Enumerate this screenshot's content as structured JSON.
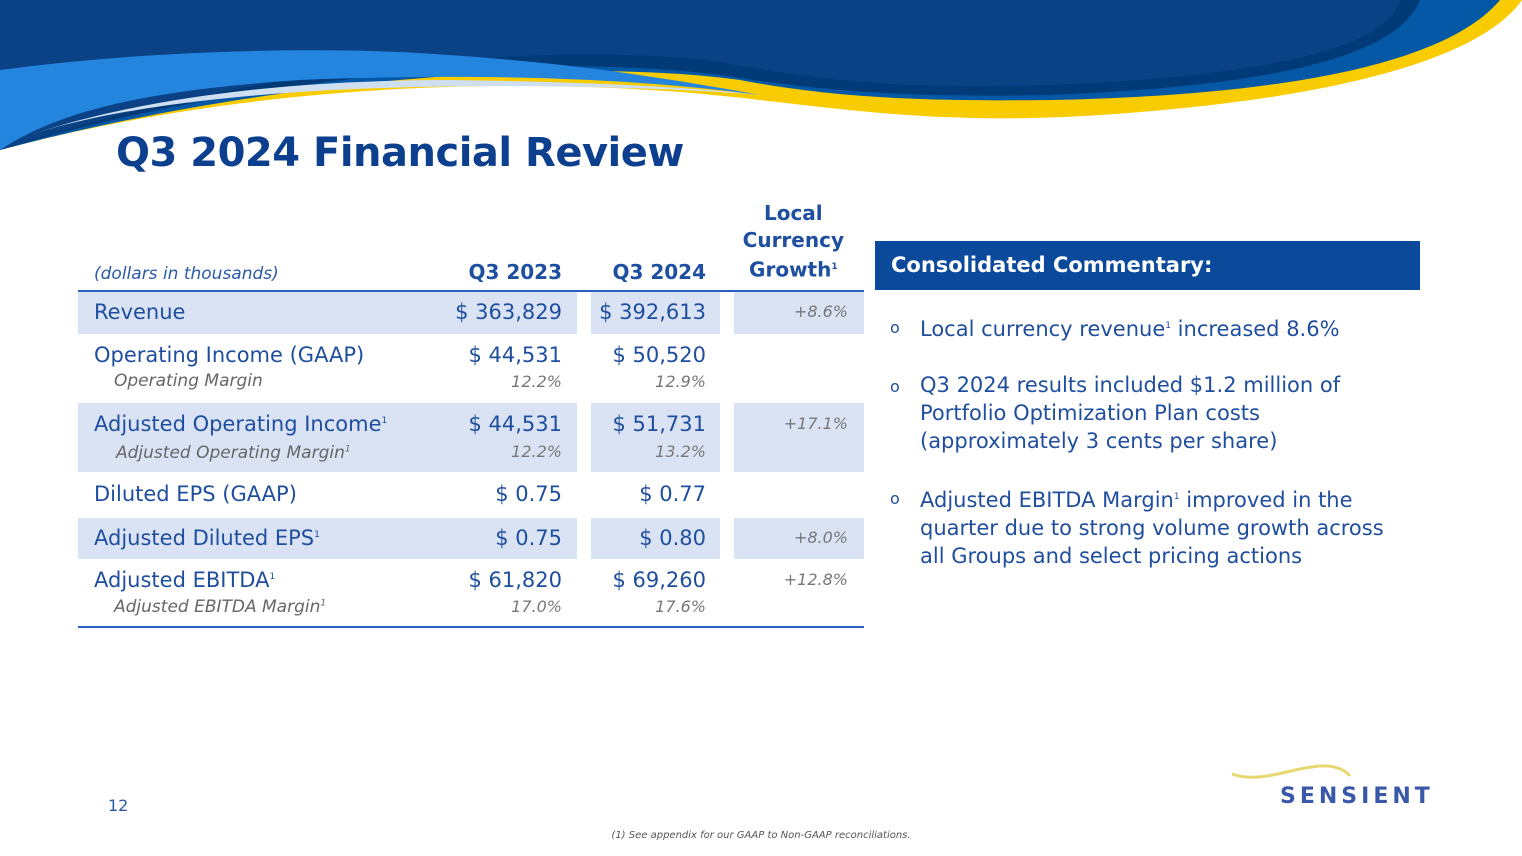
{
  "title": "Q3 2024 Financial Review",
  "table": {
    "units": "(dollars in thousands)",
    "headers": [
      "Q3 2023",
      "Q3 2024",
      "Local",
      "Currency",
      "Growth"
    ],
    "rows": [
      {
        "label": "Revenue",
        "v1": "$ 363,829",
        "v2": "$ 392,613",
        "growth": "+8.6%"
      },
      {
        "label": "Operating Income (GAAP)",
        "v1": "$ 44,531",
        "v2": "$ 50,520",
        "sub": "Operating Margin",
        "s1": "12.2%",
        "s2": "12.9%"
      },
      {
        "label": "Adjusted Operating Income",
        "v1": "$ 44,531",
        "v2": "$ 51,731",
        "growth": "+17.1%",
        "sub": "Adjusted Operating Margin",
        "s1": "12.2%",
        "s2": "13.2%"
      },
      {
        "label": "Diluted EPS (GAAP)",
        "v1": "$ 0.75",
        "v2": "$ 0.77"
      },
      {
        "label": "Adjusted Diluted EPS",
        "v1": "$ 0.75",
        "v2": "$ 0.80",
        "growth": "+8.0%"
      },
      {
        "label": "Adjusted EBITDA",
        "v1": "$ 61,820",
        "v2": "$ 69,260",
        "growth": "+12.8%",
        "sub": "Adjusted EBITDA Margin",
        "s1": "17.0%",
        "s2": "17.6%"
      }
    ]
  },
  "commentary": {
    "heading": "Consolidated Commentary:",
    "bullets": [
      {
        "a": "Local currency revenue",
        "b": " increased 8.6%"
      },
      {
        "a": "Q3 2024 results included $1.2 million of Portfolio Optimization Plan costs (approximately 3 cents per share)",
        "b": ""
      },
      {
        "a": "Adjusted EBITDA Margin",
        "b": " improved in the quarter due to strong volume growth across all Groups and select pricing actions"
      }
    ]
  },
  "footnote_mark": "1",
  "page_number": "12",
  "footnote": "(1) See appendix for our GAAP to Non-GAAP reconciliations.",
  "logo": "SENSIENT",
  "colors": {
    "navy": "#0b4a9b",
    "yellow": "#f8cc00",
    "shade": "#dae3f3"
  }
}
